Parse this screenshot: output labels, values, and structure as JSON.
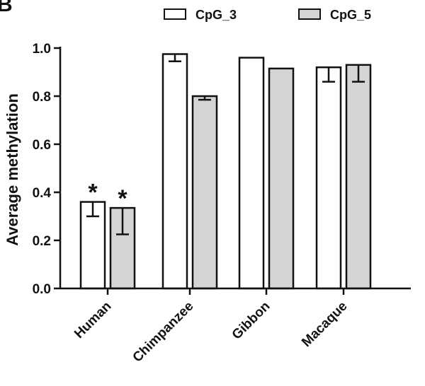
{
  "panel_label": "B",
  "chart_data": {
    "type": "bar",
    "title": "",
    "xlabel": "",
    "ylabel": "Average methylation",
    "ylim": [
      0,
      1.0
    ],
    "yticks": [
      "0.0",
      "0.2",
      "0.4",
      "0.6",
      "0.8",
      "1.0"
    ],
    "categories": [
      "Human",
      "Chimpanzee",
      "Gibbon",
      "Macaque"
    ],
    "series": [
      {
        "name": "CpG_3",
        "color": "#ffffff",
        "values": [
          0.36,
          0.975,
          0.96,
          0.92
        ],
        "error_low": [
          0.3,
          0.945,
          null,
          0.86
        ],
        "error_high": [
          0.36,
          0.975,
          null,
          0.92
        ],
        "significance": [
          "*",
          "",
          "",
          ""
        ]
      },
      {
        "name": "CpG_5",
        "color": "#d4d4d4",
        "values": [
          0.335,
          0.8,
          0.915,
          0.93
        ],
        "error_low": [
          0.225,
          0.785,
          null,
          0.86
        ],
        "error_high": [
          0.335,
          0.8,
          null,
          0.93
        ],
        "significance": [
          "*",
          "",
          "",
          ""
        ]
      }
    ],
    "legend": "top",
    "grid": false
  }
}
